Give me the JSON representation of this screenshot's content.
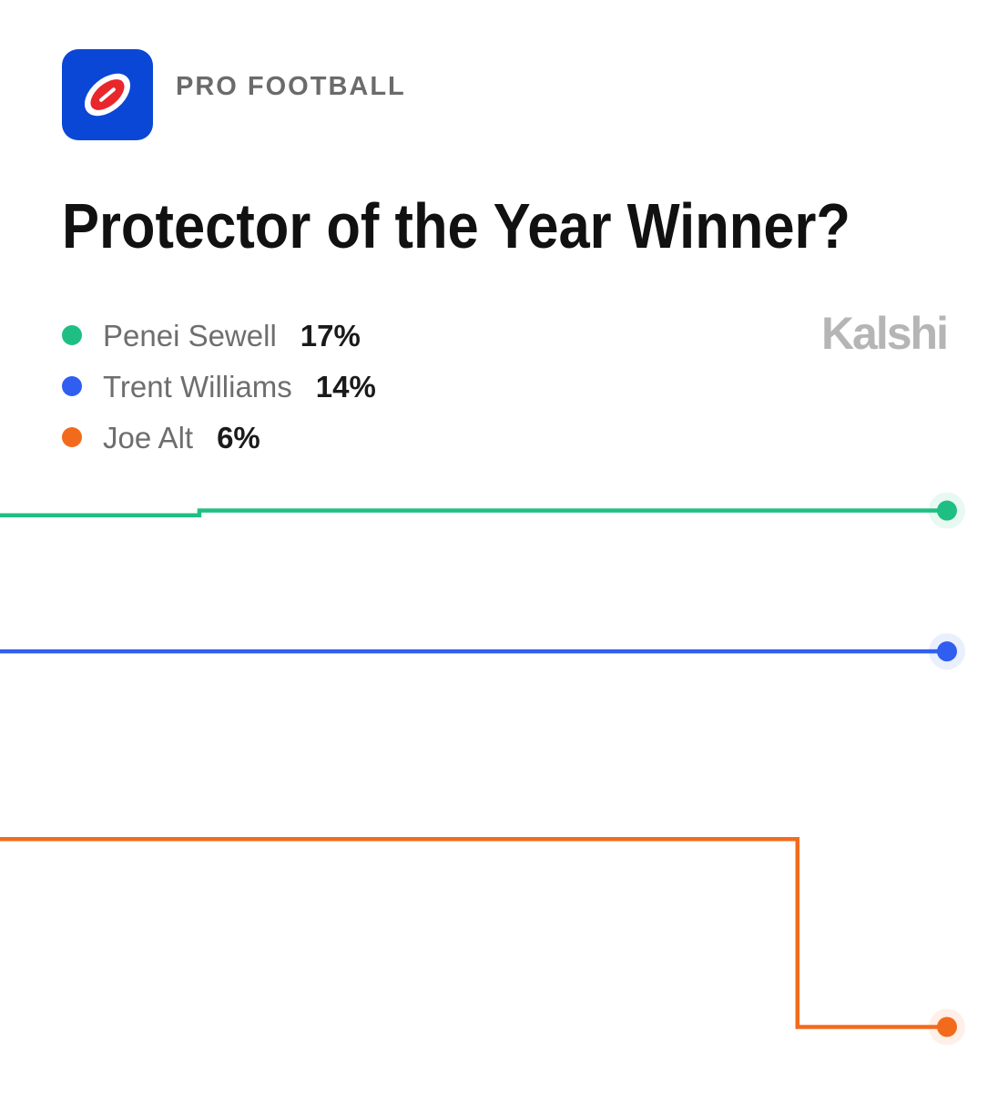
{
  "header": {
    "category": "PRO FOOTBALL",
    "brand": "Kalshi"
  },
  "chart_data": {
    "type": "line",
    "step": true,
    "title": "Protector of the Year Winner?",
    "categories": [
      null,
      null,
      null,
      null,
      null,
      null,
      null,
      null,
      null,
      null,
      null,
      null,
      null,
      null,
      null,
      null,
      null,
      null,
      null,
      null
    ],
    "ylim": [
      5,
      18
    ],
    "series": [
      {
        "name": "Penei Sewell",
        "color": "#1fbf83",
        "current": {
          "value": 17,
          "label": "17%"
        },
        "values": [
          16.9,
          16.9,
          16.9,
          16.9,
          17,
          17,
          17,
          17,
          17,
          17,
          17,
          17,
          17,
          17,
          17,
          17,
          17,
          17,
          17,
          17
        ]
      },
      {
        "name": "Trent Williams",
        "color": "#2f5ef0",
        "current": {
          "value": 14,
          "label": "14%"
        },
        "values": [
          14,
          14,
          14,
          14,
          14,
          14,
          14,
          14,
          14,
          14,
          14,
          14,
          14,
          14,
          14,
          14,
          14,
          14,
          14,
          14
        ]
      },
      {
        "name": "Joe Alt",
        "color": "#f26b1d",
        "current": {
          "value": 6,
          "label": "6%"
        },
        "values": [
          10,
          10,
          10,
          10,
          10,
          10,
          10,
          10,
          10,
          10,
          10,
          10,
          10,
          10,
          10,
          10,
          6,
          6,
          6,
          6
        ]
      }
    ]
  }
}
